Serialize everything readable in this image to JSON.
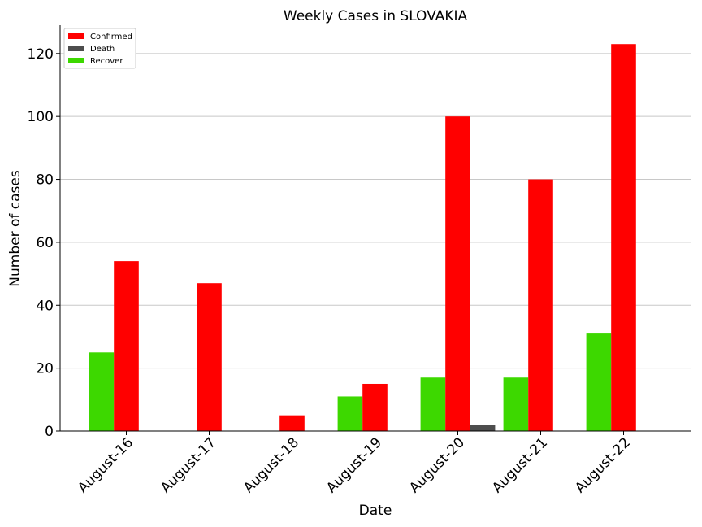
{
  "chart_data": {
    "type": "bar",
    "title": "Weekly Cases in SLOVAKIA",
    "xlabel": "Date",
    "ylabel": "Number of cases",
    "categories": [
      "August-16",
      "August-17",
      "August-18",
      "August-19",
      "August-20",
      "August-21",
      "August-22"
    ],
    "series": [
      {
        "name": "Confirmed",
        "color": "#ff0000",
        "values": [
          54,
          47,
          5,
          15,
          100,
          80,
          123
        ]
      },
      {
        "name": "Death",
        "color": "#4d4d4d",
        "values": [
          0,
          0,
          0,
          0,
          2,
          0,
          0
        ]
      },
      {
        "name": "Recover",
        "color": "#3dd800",
        "values": [
          25,
          0,
          0,
          11,
          17,
          17,
          31
        ]
      }
    ],
    "ylim": [
      0,
      129
    ],
    "yticks": [
      0,
      20,
      40,
      60,
      80,
      100,
      120
    ],
    "grid": "horizontal",
    "legend": "top-left"
  }
}
